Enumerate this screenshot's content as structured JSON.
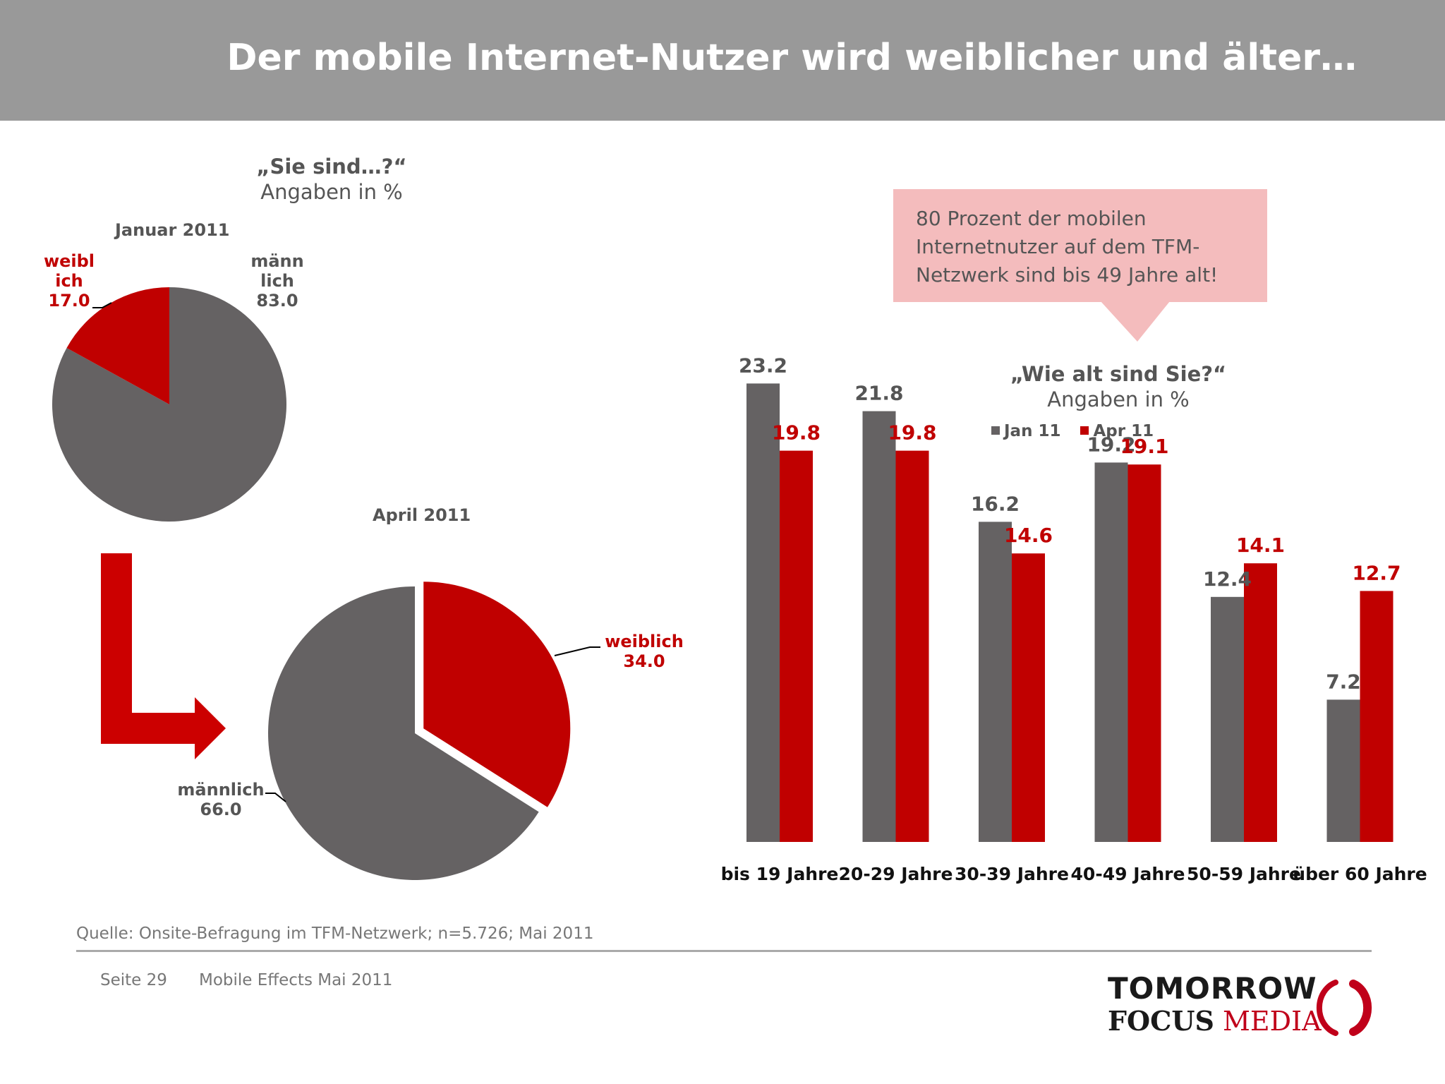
{
  "header": {
    "title": "Der mobile Internet-Nutzer wird weiblicher und älter…"
  },
  "gender_question": {
    "question": "„Sie sind…?“",
    "unit": "Angaben in %"
  },
  "age_question": {
    "question": "„Wie alt sind Sie?“",
    "unit": "Angaben in %"
  },
  "callout": {
    "text": "80 Prozent der mobilen Internetnutzer auf dem TFM-Netzwerk sind bis 49 Jahre alt!"
  },
  "colors": {
    "jan": "#656263",
    "apr": "#c00000",
    "header_bg": "#999999",
    "callout_bg": "#f4bcbd",
    "arrow": "#cc0000"
  },
  "chart_data": [
    {
      "type": "pie",
      "title": "Januar 2011",
      "slices": [
        {
          "label_lines": [
            "männ",
            "lich"
          ],
          "value": 83.0,
          "value_text": "83.0",
          "color": "#656263"
        },
        {
          "label_lines": [
            "weibl",
            "ich"
          ],
          "value": 17.0,
          "value_text": "17.0",
          "color": "#c00000"
        }
      ]
    },
    {
      "type": "pie",
      "title": "April 2011",
      "slices": [
        {
          "label_lines": [
            "männlich"
          ],
          "value": 66.0,
          "value_text": "66.0",
          "color": "#656263"
        },
        {
          "label_lines": [
            "weiblich"
          ],
          "value": 34.0,
          "value_text": "34.0",
          "color": "#c00000"
        }
      ]
    },
    {
      "type": "bar",
      "categories": [
        "bis 19 Jahre",
        "20-29 Jahre",
        "30-39 Jahre",
        "40-49 Jahre",
        "50-59 Jahre",
        "über 60 Jahre"
      ],
      "series": [
        {
          "name": "Jan 11",
          "values": [
            23.2,
            21.8,
            16.2,
            19.2,
            12.4,
            7.2
          ],
          "labels": [
            "23.2",
            "21.8",
            "16.2",
            "19.2",
            "12.4",
            "7.2"
          ],
          "color": "#656263"
        },
        {
          "name": "Apr 11",
          "values": [
            19.8,
            19.8,
            14.6,
            19.1,
            14.1,
            12.7
          ],
          "labels": [
            "19.8",
            "19.8",
            "14.6",
            "19.1",
            "14.1",
            "12.7"
          ],
          "color": "#c00000"
        }
      ],
      "ylim": [
        0,
        25
      ],
      "grid": false,
      "legend": "top-right"
    }
  ],
  "footer": {
    "source": "Quelle: Onsite-Befragung im TFM-Netzwerk; n=5.726; Mai 2011",
    "page": "Seite 29",
    "doc": "Mobile Effects Mai 2011"
  },
  "logo": {
    "line1": "TOMORROW",
    "focus": "FOCUS",
    "media": "MEDIA"
  }
}
